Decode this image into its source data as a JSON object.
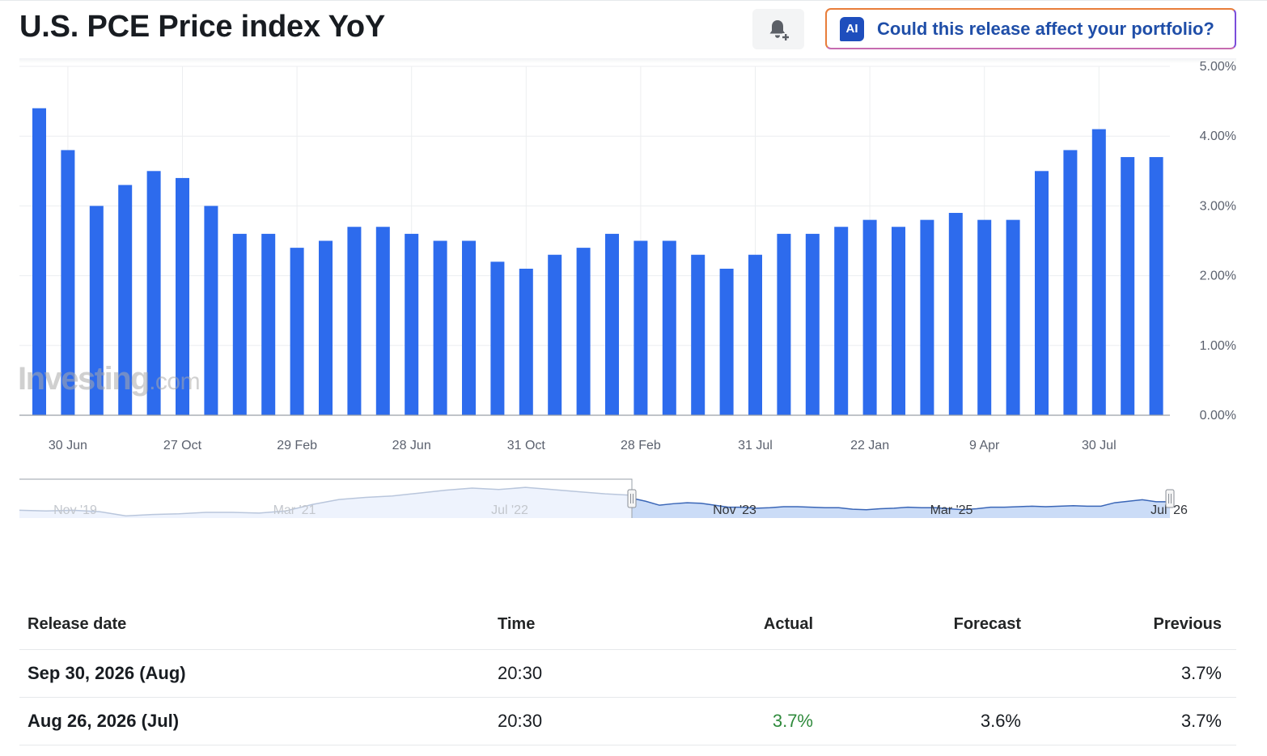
{
  "page": {
    "title": "U.S. PCE Price index YoY",
    "ai_badge": "AI",
    "ai_button_label": "Could this release affect your portfolio?",
    "watermark": "Investing",
    "watermark_suffix": ".com"
  },
  "colors": {
    "bar": "#2d6bed",
    "positive_actual": "#2f8a3c",
    "ai_text": "#1f4ea8"
  },
  "icons": {
    "alert": "bell-plus-icon",
    "ai": "ai-badge-icon"
  },
  "chart_data": {
    "type": "bar",
    "y_axis_position": "right",
    "ylim": [
      0,
      5
    ],
    "y_ticks": [
      "0.00%",
      "1.00%",
      "2.00%",
      "3.00%",
      "4.00%",
      "5.00%"
    ],
    "x_tick_labels": [
      "30 Jun",
      "27 Oct",
      "29 Feb",
      "28 Jun",
      "31 Oct",
      "28 Feb",
      "31 Jul",
      "22 Jan",
      "9 Apr",
      "30 Jul"
    ],
    "values": [
      4.4,
      3.8,
      3.0,
      3.3,
      3.5,
      3.4,
      3.0,
      2.6,
      2.6,
      2.4,
      2.5,
      2.7,
      2.7,
      2.6,
      2.5,
      2.5,
      2.2,
      2.1,
      2.3,
      2.4,
      2.6,
      2.5,
      2.5,
      2.3,
      2.1,
      2.3,
      2.6,
      2.6,
      2.7,
      2.8,
      2.7,
      2.8,
      2.9,
      2.8,
      2.8,
      3.5,
      3.8,
      4.1,
      3.7,
      3.7
    ],
    "grid": true,
    "navigator": {
      "labels": [
        "Nov '19",
        "Mar '21",
        "Jul '22",
        "Nov '23",
        "Mar '25",
        "Jul '26"
      ]
    }
  },
  "table": {
    "headers": {
      "release_date": "Release date",
      "time": "Time",
      "actual": "Actual",
      "forecast": "Forecast",
      "previous": "Previous"
    },
    "rows": [
      {
        "release_date": "Sep 30, 2026 (Aug)",
        "time": "20:30",
        "actual": "",
        "forecast": "",
        "previous": "3.7%"
      },
      {
        "release_date": "Aug 26, 2026 (Jul)",
        "time": "20:30",
        "actual": "3.7%",
        "forecast": "3.6%",
        "previous": "3.7%"
      }
    ]
  }
}
